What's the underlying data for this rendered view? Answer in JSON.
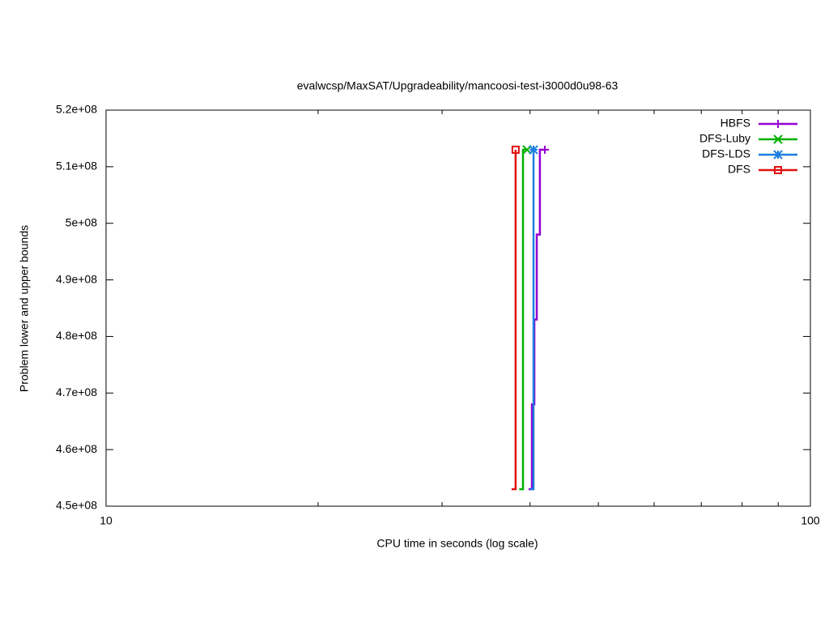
{
  "chart_data": {
    "type": "step",
    "title": "evalwcsp/MaxSAT/Upgradeability/mancoosi-test-i3000d0u98-63",
    "x_label": "CPU time in seconds (log scale)",
    "y_label": "Problem lower and upper bounds",
    "xlog": true,
    "xlim": [
      10,
      100
    ],
    "xticks": [
      10,
      100
    ],
    "xminor_ticks": [
      20,
      30,
      40,
      50,
      60,
      70,
      80,
      90
    ],
    "ylim": [
      450000000,
      520000000
    ],
    "yticks": [
      {
        "value": 450000000,
        "label": "4.5e+08"
      },
      {
        "value": 460000000,
        "label": "4.6e+08"
      },
      {
        "value": 470000000,
        "label": "4.7e+08"
      },
      {
        "value": 480000000,
        "label": "4.8e+08"
      },
      {
        "value": 490000000,
        "label": "4.9e+08"
      },
      {
        "value": 500000000,
        "label": "5e+08"
      },
      {
        "value": 510000000,
        "label": "5.1e+08"
      },
      {
        "value": 520000000,
        "label": "5.2e+08"
      }
    ],
    "legend": "top right",
    "series": [
      {
        "name": "HBFS",
        "color": "#9400d3",
        "marker": "plus",
        "x": [
          39.8,
          40.24,
          40.56,
          40.88,
          41.3,
          41.98
        ],
        "y": [
          453000000,
          468000000,
          483000000,
          498000000,
          513000000,
          513000000
        ]
      },
      {
        "name": "DFS-Luby",
        "color": "#00b000",
        "marker": "cross",
        "x": [
          38.6,
          39.08,
          39.6
        ],
        "y": [
          453000000,
          513000000,
          513000000
        ]
      },
      {
        "name": "DFS-LDS",
        "color": "#1a7fe0",
        "marker": "star",
        "x": [
          40.03,
          40.45
        ],
        "y": [
          453000000,
          513000000
        ]
      },
      {
        "name": "DFS",
        "color": "#e01010",
        "marker": "square",
        "x": [
          37.65,
          38.15
        ],
        "y": [
          453000000,
          513000000
        ]
      }
    ]
  }
}
